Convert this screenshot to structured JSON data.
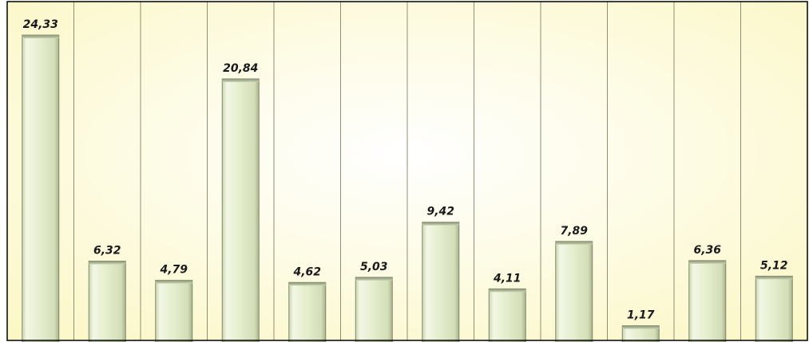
{
  "chart_data": {
    "type": "bar",
    "title": "",
    "xlabel": "",
    "ylabel": "",
    "categories": [],
    "values": [
      24.33,
      6.32,
      4.79,
      20.84,
      4.62,
      5.03,
      9.42,
      4.11,
      7.89,
      1.17,
      6.36,
      5.12
    ],
    "labels": [
      "24,33",
      "6,32",
      "4,79",
      "20,84",
      "4,62",
      "5,03",
      "9,42",
      "4,11",
      "7,89",
      "1,17",
      "6,36",
      "5,12"
    ],
    "ylim": [
      0,
      27.0
    ],
    "grid": "vertical",
    "legend": "none",
    "colors": {
      "background_center": "#ffffff",
      "background_edge": "#fbf7c4",
      "bar_face": "#e4edcc",
      "bar_edge": "#7f8a6b",
      "gridline": "#8f8f74",
      "frame": "#000000"
    }
  }
}
